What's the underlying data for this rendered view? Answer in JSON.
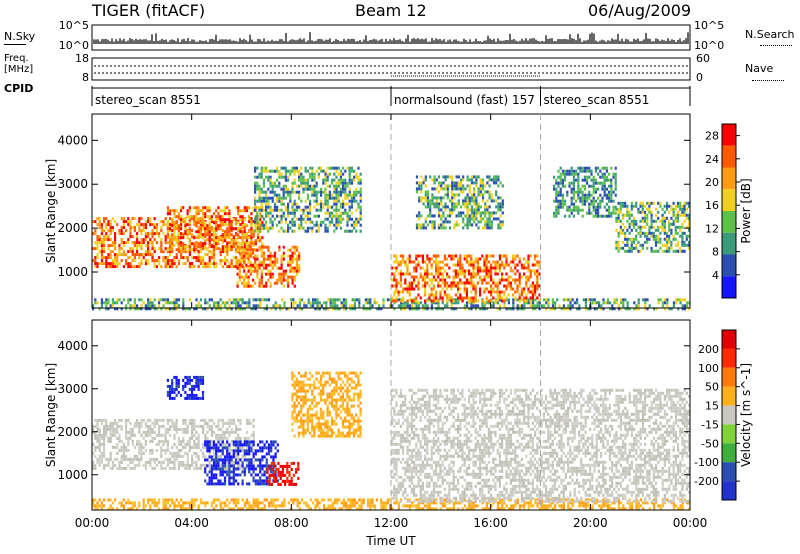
{
  "header": {
    "title": "TIGER (fitACF)",
    "beam": "Beam 12",
    "date": "06/Aug/2009"
  },
  "nsky_strip": {
    "left_label": "N.Sky",
    "right_label": "N.Search",
    "left_ticks": [
      "10^5",
      "10^0"
    ],
    "right_ticks": [
      "10^5",
      "10^0"
    ]
  },
  "freq_strip": {
    "left_label_line1": "Freq.",
    "left_label_line2": "[MHz]",
    "left_ticks": [
      "18",
      "8"
    ],
    "right_label": "Nave",
    "right_ticks": [
      "60",
      "0"
    ]
  },
  "cpid_strip": {
    "label": "CPID",
    "segments": [
      {
        "name": "stereo_scan 8551",
        "start_hour": 0,
        "end_hour": 12
      },
      {
        "name": "normalsound (fast) 157",
        "start_hour": 12,
        "end_hour": 18
      },
      {
        "name": "stereo_scan 8551",
        "start_hour": 18,
        "end_hour": 24
      }
    ]
  },
  "colors": {
    "power_scale": [
      "#1515ff",
      "#2a4fb0",
      "#3a9a7a",
      "#5cc04a",
      "#f0d020",
      "#ff9c10",
      "#ff5a00",
      "#ff0000"
    ],
    "velocity_scale": [
      "#2233cc",
      "#2a4fb0",
      "#3fae3f",
      "#7fd23a",
      "#c8c8c0",
      "#ffb01a",
      "#ff7a00",
      "#ff2a00",
      "#e00000"
    ]
  },
  "chart_data": [
    {
      "type": "heatmap",
      "title": "Power",
      "xlabel": "Time UT",
      "ylabel": "Slant Range [km]",
      "xlim": [
        0,
        24
      ],
      "ylim": [
        180,
        4600
      ],
      "x_ticks": [
        "00:00",
        "04:00",
        "08:00",
        "12:00",
        "16:00",
        "20:00",
        "00:00"
      ],
      "y_ticks": [
        "1000",
        "2000",
        "3000",
        "4000"
      ],
      "colorbar_label": "Power [dB]",
      "colorbar_ticks": [
        "4",
        "8",
        "12",
        "16",
        "20",
        "24",
        "28"
      ],
      "colorbar_range": [
        0,
        30
      ],
      "regions": [
        {
          "t0": 0.0,
          "t1": 6.5,
          "r0": 1150,
          "r1": 2250,
          "level": "high"
        },
        {
          "t0": 3.0,
          "t1": 6.8,
          "r0": 1500,
          "r1": 2500,
          "level": "high"
        },
        {
          "t0": 5.8,
          "t1": 8.3,
          "r0": 700,
          "r1": 1600,
          "level": "high"
        },
        {
          "t0": 6.5,
          "t1": 10.8,
          "r0": 1900,
          "r1": 3400,
          "level": "mid"
        },
        {
          "t0": 0.0,
          "t1": 24.0,
          "r0": 180,
          "r1": 400,
          "level": "mid"
        },
        {
          "t0": 12.0,
          "t1": 18.0,
          "r0": 350,
          "r1": 1400,
          "level": "high"
        },
        {
          "t0": 13.0,
          "t1": 16.5,
          "r0": 2000,
          "r1": 3200,
          "level": "mid"
        },
        {
          "t0": 18.5,
          "t1": 21.0,
          "r0": 2300,
          "r1": 3400,
          "level": "low"
        },
        {
          "t0": 21.0,
          "t1": 24.0,
          "r0": 1500,
          "r1": 2600,
          "level": "mid"
        }
      ]
    },
    {
      "type": "heatmap",
      "title": "Velocity",
      "xlabel": "Time UT",
      "ylabel": "Slant Range [km]",
      "xlim": [
        0,
        24
      ],
      "ylim": [
        180,
        4600
      ],
      "x_ticks": [
        "00:00",
        "04:00",
        "08:00",
        "12:00",
        "16:00",
        "20:00",
        "00:00"
      ],
      "y_ticks": [
        "1000",
        "2000",
        "3000",
        "4000"
      ],
      "colorbar_label": "Velocity [m s^-1]",
      "colorbar_ticks": [
        "200",
        "100",
        "50",
        "15",
        "-15",
        "-50",
        "-100",
        "-200"
      ],
      "colorbar_range": [
        -250,
        250
      ],
      "regions": [
        {
          "t0": 0.0,
          "t1": 6.5,
          "r0": 1150,
          "r1": 2300,
          "level": "gray"
        },
        {
          "t0": 4.5,
          "t1": 7.5,
          "r0": 800,
          "r1": 1800,
          "level": "blue"
        },
        {
          "t0": 7.0,
          "t1": 8.3,
          "r0": 800,
          "r1": 1300,
          "level": "red"
        },
        {
          "t0": 3.0,
          "t1": 4.5,
          "r0": 2800,
          "r1": 3300,
          "level": "blue"
        },
        {
          "t0": 8.0,
          "t1": 10.8,
          "r0": 1900,
          "r1": 3400,
          "level": "orange"
        },
        {
          "t0": 0.0,
          "t1": 24.0,
          "r0": 180,
          "r1": 450,
          "level": "orange"
        },
        {
          "t0": 12.0,
          "t1": 24.0,
          "r0": 400,
          "r1": 3000,
          "level": "gray"
        }
      ]
    }
  ]
}
